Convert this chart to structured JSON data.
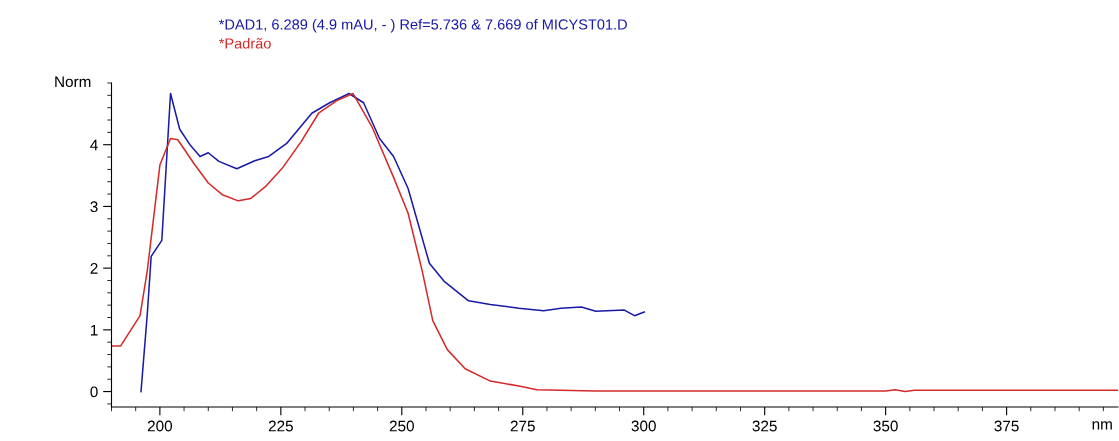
{
  "chart_data": {
    "type": "line",
    "xlabel": "nm",
    "ylabel": "Norm",
    "xlim": [
      190,
      398
    ],
    "xticks": [
      200,
      225,
      250,
      275,
      300,
      325,
      350,
      375
    ],
    "ylim": [
      -0.25,
      5.0
    ],
    "yticks": [
      0,
      1,
      2,
      3,
      4
    ],
    "grid": false,
    "legend": false,
    "marker": "none",
    "line_style": "solid",
    "series": [
      {
        "name": "*DAD1, 6.289 (4.9 mAU, - ) Ref=5.736 & 7.669 of MICYST01.D",
        "color": "#1a1aa8",
        "x": [
          196.1,
          197.4,
          198.2,
          200.4,
          201.3,
          202.2,
          204.1,
          206.3,
          208.3,
          210.0,
          212.2,
          215.9,
          219.6,
          222.5,
          226.2,
          231.4,
          235.1,
          239.1,
          242.1,
          245.4,
          248.3,
          251.3,
          255.7,
          258.7,
          263.8,
          268.3,
          274.2,
          279.3,
          282.9,
          287.1,
          290.1,
          296.0,
          298.1,
          300.1
        ],
        "values": [
          0,
          1.26,
          2.19,
          2.45,
          3.64,
          4.83,
          4.25,
          3.99,
          3.81,
          3.87,
          3.73,
          3.61,
          3.74,
          3.81,
          4.02,
          4.51,
          4.68,
          4.83,
          4.68,
          4.1,
          3.81,
          3.29,
          2.08,
          1.79,
          1.47,
          1.41,
          1.35,
          1.31,
          1.35,
          1.37,
          1.3,
          1.32,
          1.23,
          1.29
        ]
      },
      {
        "name": "*Padrão",
        "color": "#d42a2a",
        "x": [
          190.2,
          191.9,
          195.9,
          197.4,
          200.0,
          202.2,
          203.7,
          207.0,
          210.0,
          212.9,
          216.2,
          218.8,
          221.8,
          225.5,
          229.2,
          232.8,
          236.5,
          239.9,
          243.9,
          248.3,
          251.3,
          254.2,
          256.4,
          259.4,
          263.1,
          268.3,
          274.2,
          277.9,
          290,
          350,
          352,
          354,
          356,
          398
        ],
        "values": [
          0.74,
          0.74,
          1.23,
          1.96,
          3.67,
          4.1,
          4.08,
          3.7,
          3.38,
          3.19,
          3.09,
          3.13,
          3.32,
          3.64,
          4.05,
          4.51,
          4.71,
          4.83,
          4.28,
          3.47,
          2.89,
          1.96,
          1.15,
          0.68,
          0.37,
          0.17,
          0.09,
          0.03,
          0.01,
          0.01,
          0.03,
          0.0,
          0.02,
          0.02
        ]
      }
    ]
  }
}
